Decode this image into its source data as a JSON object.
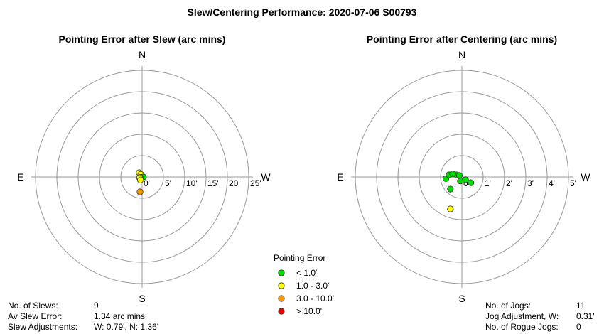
{
  "page_title": "Slew/Centering Performance: 2020-07-06 S00793",
  "chart_data": [
    {
      "type": "scatter",
      "title": "Pointing Error after Slew (arc mins)",
      "directions": {
        "n": "N",
        "s": "S",
        "e": "E",
        "w": "W"
      },
      "rmax": 25,
      "ring_radii": [
        5,
        10,
        15,
        20,
        25
      ],
      "tick_labels": [
        "0'",
        "5'",
        "10'",
        "15'",
        "20'",
        "25'"
      ],
      "points": [
        {
          "x": -0.7,
          "y": 1.0,
          "color": "#ffff00"
        },
        {
          "x": -0.3,
          "y": 0.6,
          "color": "#ffff00"
        },
        {
          "x": -0.3,
          "y": -0.2,
          "color": "#ffff00"
        },
        {
          "x": 0.0,
          "y": -0.1,
          "color": "#00dd00"
        },
        {
          "x": 0.3,
          "y": 0.0,
          "color": "#00dd00"
        },
        {
          "x": -0.4,
          "y": -0.1,
          "color": "#00dd00"
        },
        {
          "x": -0.6,
          "y": -0.2,
          "color": "#ffff00"
        },
        {
          "x": -0.4,
          "y": -0.7,
          "color": "#ffff00"
        },
        {
          "x": -0.5,
          "y": -3.5,
          "color": "#ff9900"
        }
      ]
    },
    {
      "type": "scatter",
      "title": "Pointing Error after Centering (arc mins)",
      "directions": {
        "n": "N",
        "s": "S",
        "e": "E",
        "w": "W"
      },
      "rmax": 5,
      "ring_radii": [
        1,
        2,
        3,
        4,
        5
      ],
      "tick_labels": [
        "0'",
        "1'",
        "2'",
        "3'",
        "4'",
        "5'"
      ],
      "points": [
        {
          "x": -0.25,
          "y": 0.1,
          "color": "#00dd00"
        },
        {
          "x": -0.12,
          "y": 0.07,
          "color": "#00dd00"
        },
        {
          "x": -0.07,
          "y": -0.19,
          "color": "#00dd00"
        },
        {
          "x": -0.75,
          "y": -0.08,
          "color": "#00dd00"
        },
        {
          "x": -0.6,
          "y": 0.1,
          "color": "#00dd00"
        },
        {
          "x": -0.43,
          "y": 0.14,
          "color": "#00dd00"
        },
        {
          "x": 0.42,
          "y": -0.27,
          "color": "#00dd00"
        },
        {
          "x": 0.17,
          "y": -0.13,
          "color": "#00dd00"
        },
        {
          "x": -0.54,
          "y": -0.57,
          "color": "#00dd00"
        },
        {
          "x": -0.54,
          "y": -1.5,
          "color": "#ffff00"
        }
      ]
    }
  ],
  "legend": {
    "title": "Pointing Error",
    "items": [
      {
        "label": "< 1.0'",
        "color": "#00dd00"
      },
      {
        "label": "1.0 - 3.0'",
        "color": "#ffff00"
      },
      {
        "label": "3.0 - 10.0'",
        "color": "#ff9900"
      },
      {
        "label": "> 10.0'",
        "color": "#ee0000"
      }
    ]
  },
  "slew_stats": [
    {
      "label": "No. of Slews:",
      "value": "9"
    },
    {
      "label": "Av Slew Error:",
      "value": "1.34 arc mins"
    },
    {
      "label": "Slew Adjustments:",
      "value": "W: 0.79', N: 1.36'"
    }
  ],
  "jog_stats": [
    {
      "label": "No. of Jogs:",
      "value": "11"
    },
    {
      "label": "Jog Adjustment, W:",
      "value": "0.31'"
    },
    {
      "label": "No. of Rogue Jogs:",
      "value": "0"
    }
  ]
}
